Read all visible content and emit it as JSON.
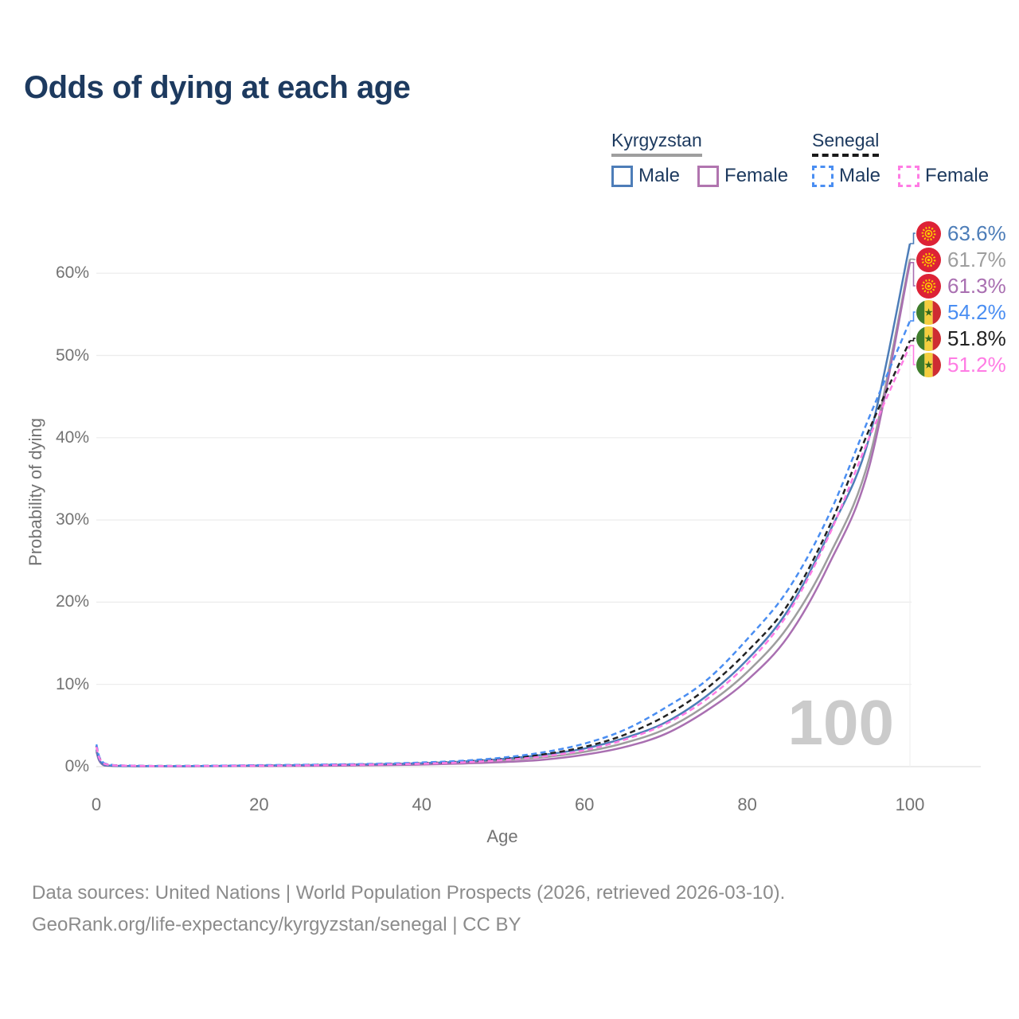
{
  "title": "Odds of dying at each age",
  "legend": {
    "groups": [
      {
        "label": "Kyrgyzstan",
        "line_style": "solid",
        "underline_color": "#9e9e9e",
        "items": [
          {
            "label": "Male",
            "color": "#4d7db8",
            "dashed": false
          },
          {
            "label": "Female",
            "color": "#b175af",
            "dashed": false
          }
        ]
      },
      {
        "label": "Senegal",
        "line_style": "dashed",
        "underline_color": "#1a1a1a",
        "items": [
          {
            "label": "Male",
            "color": "#4a8ef2",
            "dashed": true
          },
          {
            "label": "Female",
            "color": "#ff7ce4",
            "dashed": true
          }
        ]
      }
    ]
  },
  "watermark_age": "100",
  "chart_data": {
    "type": "line",
    "title": "Odds of dying at each age",
    "xlabel": "Age",
    "ylabel": "Probability of dying",
    "x_ticks": [
      0,
      20,
      40,
      60,
      80,
      100
    ],
    "x_tick_labels": [
      "0",
      "20",
      "40",
      "60",
      "80",
      "100"
    ],
    "y_ticks_percent": [
      0,
      10,
      20,
      30,
      40,
      50,
      60
    ],
    "y_tick_labels": [
      "0%",
      "10%",
      "20%",
      "30%",
      "40%",
      "50%",
      "60%"
    ],
    "xlim": [
      0,
      100
    ],
    "ylim_percent": [
      0,
      66
    ],
    "grid": "horizontal",
    "legend_position": "top-right",
    "ages": [
      0,
      1,
      5,
      10,
      15,
      20,
      25,
      30,
      35,
      40,
      45,
      50,
      55,
      60,
      65,
      70,
      75,
      80,
      85,
      90,
      95,
      100
    ],
    "series": [
      {
        "name": "Kyrgyzstan Male",
        "country": "Kyrgyzstan",
        "sex": "Male",
        "color": "#4d7db8",
        "dashed": false,
        "flag": "kyrgyzstan",
        "end_label": "63.6%",
        "values_percent": [
          2.1,
          0.18,
          0.06,
          0.05,
          0.09,
          0.14,
          0.18,
          0.23,
          0.3,
          0.42,
          0.62,
          0.95,
          1.45,
          2.2,
          3.5,
          5.4,
          8.6,
          13,
          19,
          28.3,
          40,
          63.6
        ]
      },
      {
        "name": "Kyrgyzstan Both sexes",
        "country": "Kyrgyzstan",
        "sex": "Both",
        "color": "#9e9e9e",
        "dashed": false,
        "flag": "kyrgyzstan",
        "end_label": "61.7%",
        "values_percent": [
          1.95,
          0.16,
          0.055,
          0.045,
          0.075,
          0.11,
          0.14,
          0.18,
          0.24,
          0.34,
          0.5,
          0.78,
          1.15,
          1.8,
          2.9,
          4.6,
          7.5,
          11.5,
          17,
          25.5,
          37.5,
          61.7
        ]
      },
      {
        "name": "Kyrgyzstan Female",
        "country": "Kyrgyzstan",
        "sex": "Female",
        "color": "#a96fb1",
        "dashed": false,
        "flag": "kyrgyzstan",
        "end_label": "61.3%",
        "values_percent": [
          1.8,
          0.14,
          0.05,
          0.04,
          0.06,
          0.08,
          0.1,
          0.13,
          0.18,
          0.25,
          0.38,
          0.55,
          0.85,
          1.45,
          2.4,
          4,
          6.8,
          10.5,
          15.8,
          24.5,
          36.5,
          61.3
        ]
      },
      {
        "name": "Senegal Male",
        "country": "Senegal",
        "sex": "Male",
        "color": "#4a8ef2",
        "dashed": true,
        "flag": "senegal",
        "end_label": "54.2%",
        "values_percent": [
          2.7,
          0.4,
          0.12,
          0.09,
          0.12,
          0.18,
          0.22,
          0.28,
          0.36,
          0.5,
          0.72,
          1.1,
          1.75,
          2.8,
          4.5,
          7.2,
          10.5,
          15.5,
          21.5,
          30.5,
          42.5,
          54.2
        ]
      },
      {
        "name": "Senegal Both sexes",
        "country": "Senegal",
        "sex": "Both",
        "color": "#222222",
        "dashed": true,
        "flag": "senegal",
        "end_label": "51.8%",
        "values_percent": [
          2.55,
          0.37,
          0.11,
          0.085,
          0.1,
          0.15,
          0.19,
          0.24,
          0.31,
          0.43,
          0.62,
          0.95,
          1.5,
          2.4,
          3.9,
          6.2,
          9.5,
          14,
          19.7,
          29,
          41,
          51.8
        ]
      },
      {
        "name": "Senegal Female",
        "country": "Senegal",
        "sex": "Female",
        "color": "#ff7ce4",
        "dashed": true,
        "flag": "senegal",
        "end_label": "51.2%",
        "values_percent": [
          2.4,
          0.34,
          0.1,
          0.08,
          0.09,
          0.12,
          0.15,
          0.2,
          0.26,
          0.36,
          0.52,
          0.8,
          1.25,
          2,
          3.3,
          5.2,
          8.2,
          12.5,
          18.6,
          28,
          40,
          51.2
        ]
      }
    ]
  },
  "footer": {
    "line1": "Data sources: United Nations | World Population Prospects (2026, retrieved 2026-03-10).",
    "line2": "GeoRank.org/life-expectancy/kyrgyzstan/senegal | CC BY"
  }
}
